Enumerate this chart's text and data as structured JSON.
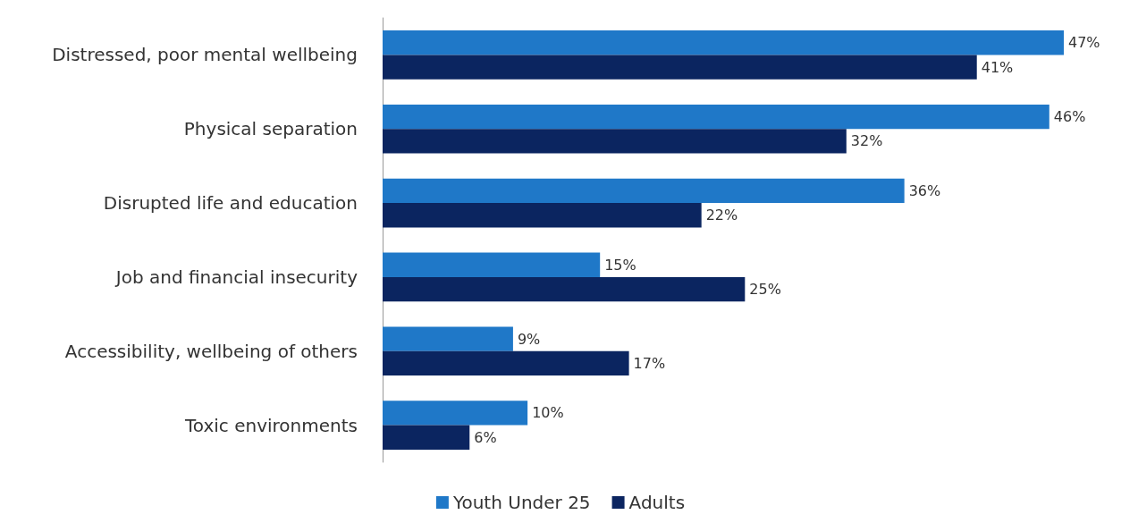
{
  "chart_data": {
    "type": "bar",
    "orientation": "horizontal",
    "categories": [
      "Distressed, poor mental wellbeing",
      "Physical separation",
      "Disrupted life and education",
      "Job and financial insecurity",
      "Accessibility, wellbeing of others",
      "Toxic environments"
    ],
    "series": [
      {
        "name": "Youth Under 25",
        "color": "#1f78c8",
        "values": [
          47,
          46,
          36,
          15,
          9,
          10
        ],
        "value_labels": [
          "47%",
          "46%",
          "36%",
          "15%",
          "9%",
          "10%"
        ]
      },
      {
        "name": "Adults",
        "color": "#0b2560",
        "values": [
          41,
          32,
          22,
          25,
          17,
          6
        ],
        "value_labels": [
          "41%",
          "32%",
          "22%",
          "25%",
          "17%",
          "6%"
        ]
      }
    ],
    "legend": "bottom",
    "tick_labels": "y"
  }
}
